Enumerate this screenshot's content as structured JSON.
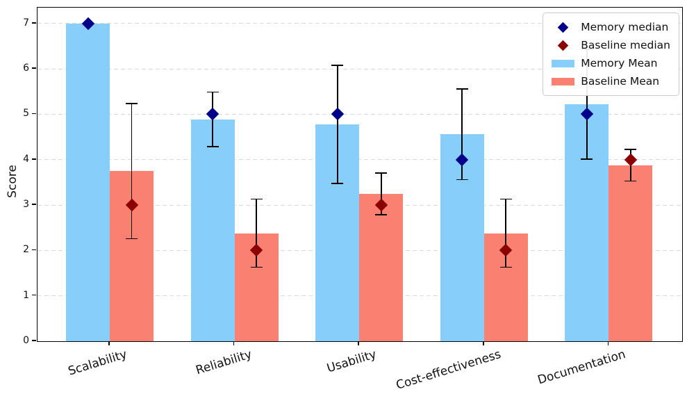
{
  "chart_data": {
    "type": "bar",
    "title": "",
    "xlabel": "",
    "ylabel": "Score",
    "categories": [
      "Scalability",
      "Reliability",
      "Usability",
      "Cost-effectiveness",
      "Documentation"
    ],
    "yticks": [
      0,
      1,
      2,
      3,
      4,
      5,
      6,
      7
    ],
    "ylim": [
      0,
      7.35
    ],
    "grid": "horizontal-dashed",
    "legend_position": "upper right",
    "series": [
      {
        "name": "Memory Mean",
        "kind": "bar",
        "color": "#87CEFA",
        "values": [
          7.0,
          4.89,
          4.78,
          4.56,
          5.22
        ],
        "errors": [
          0,
          0.6,
          1.3,
          1.0,
          1.21
        ]
      },
      {
        "name": "Baseline Mean",
        "kind": "bar",
        "color": "#FA8072",
        "values": [
          3.75,
          2.38,
          3.25,
          2.38,
          3.88
        ],
        "errors": [
          1.49,
          0.75,
          0.46,
          0.75,
          0.35
        ]
      },
      {
        "name": "Memory median",
        "kind": "scatter",
        "marker": "diamond",
        "color": "#00008B",
        "values": [
          7,
          5,
          5,
          4,
          5
        ]
      },
      {
        "name": "Baseline median",
        "kind": "scatter",
        "marker": "diamond",
        "color": "#8B0000",
        "values": [
          3,
          2,
          3,
          2,
          4
        ]
      }
    ],
    "legend": [
      {
        "label": "Memory median",
        "marker": "diamond",
        "color": "#00008B"
      },
      {
        "label": "Baseline median",
        "marker": "diamond",
        "color": "#8B0000"
      },
      {
        "label": "Memory Mean",
        "marker": "rect",
        "color": "#87CEFA"
      },
      {
        "label": "Baseline Mean",
        "marker": "rect",
        "color": "#FA8072"
      }
    ],
    "error_bar_color": "#000000"
  }
}
